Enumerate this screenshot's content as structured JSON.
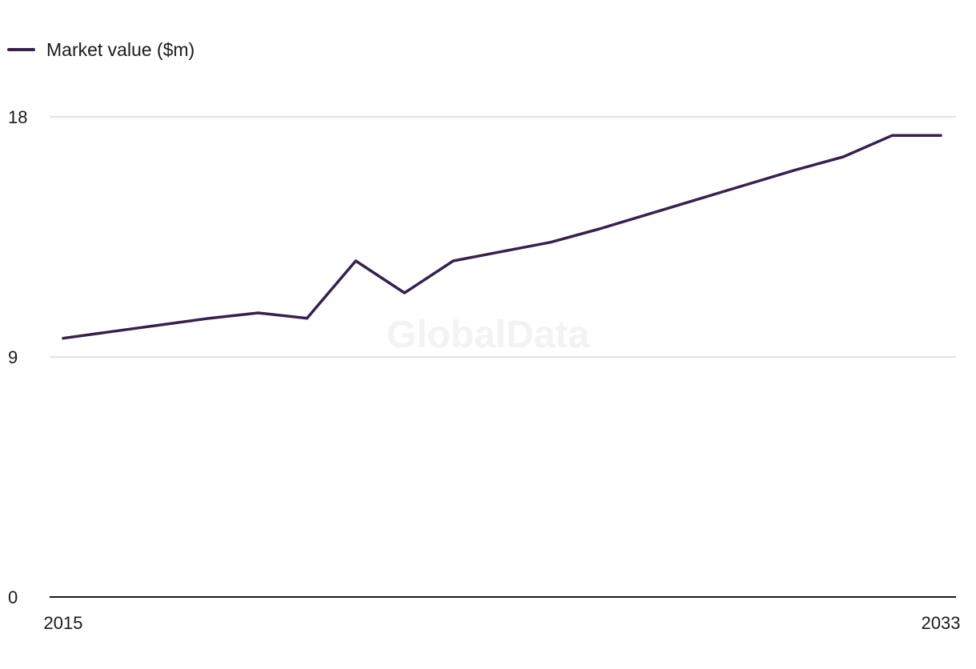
{
  "watermark": "GlobalData",
  "chart_data": {
    "type": "line",
    "x": [
      2015,
      2016,
      2017,
      2018,
      2019,
      2020,
      2021,
      2022,
      2023,
      2024,
      2025,
      2026,
      2027,
      2028,
      2029,
      2030,
      2031,
      2032,
      2033
    ],
    "series": [
      {
        "name": "Market value ($m)",
        "color": "#35224f",
        "values": [
          9.7,
          9.95,
          10.2,
          10.45,
          10.65,
          10.45,
          12.6,
          11.4,
          12.6,
          12.95,
          13.3,
          13.8,
          14.35,
          14.9,
          15.45,
          16.0,
          16.5,
          17.3,
          17.3
        ]
      }
    ],
    "x_tick_labels": [
      "2015",
      "2033"
    ],
    "y_ticks": [
      0,
      9,
      18
    ],
    "y_tick_labels": [
      "0",
      "9",
      "18"
    ],
    "xlabel": "",
    "ylabel": "",
    "ylim": [
      0,
      18
    ],
    "grid": true,
    "legend_position": "top-left"
  }
}
